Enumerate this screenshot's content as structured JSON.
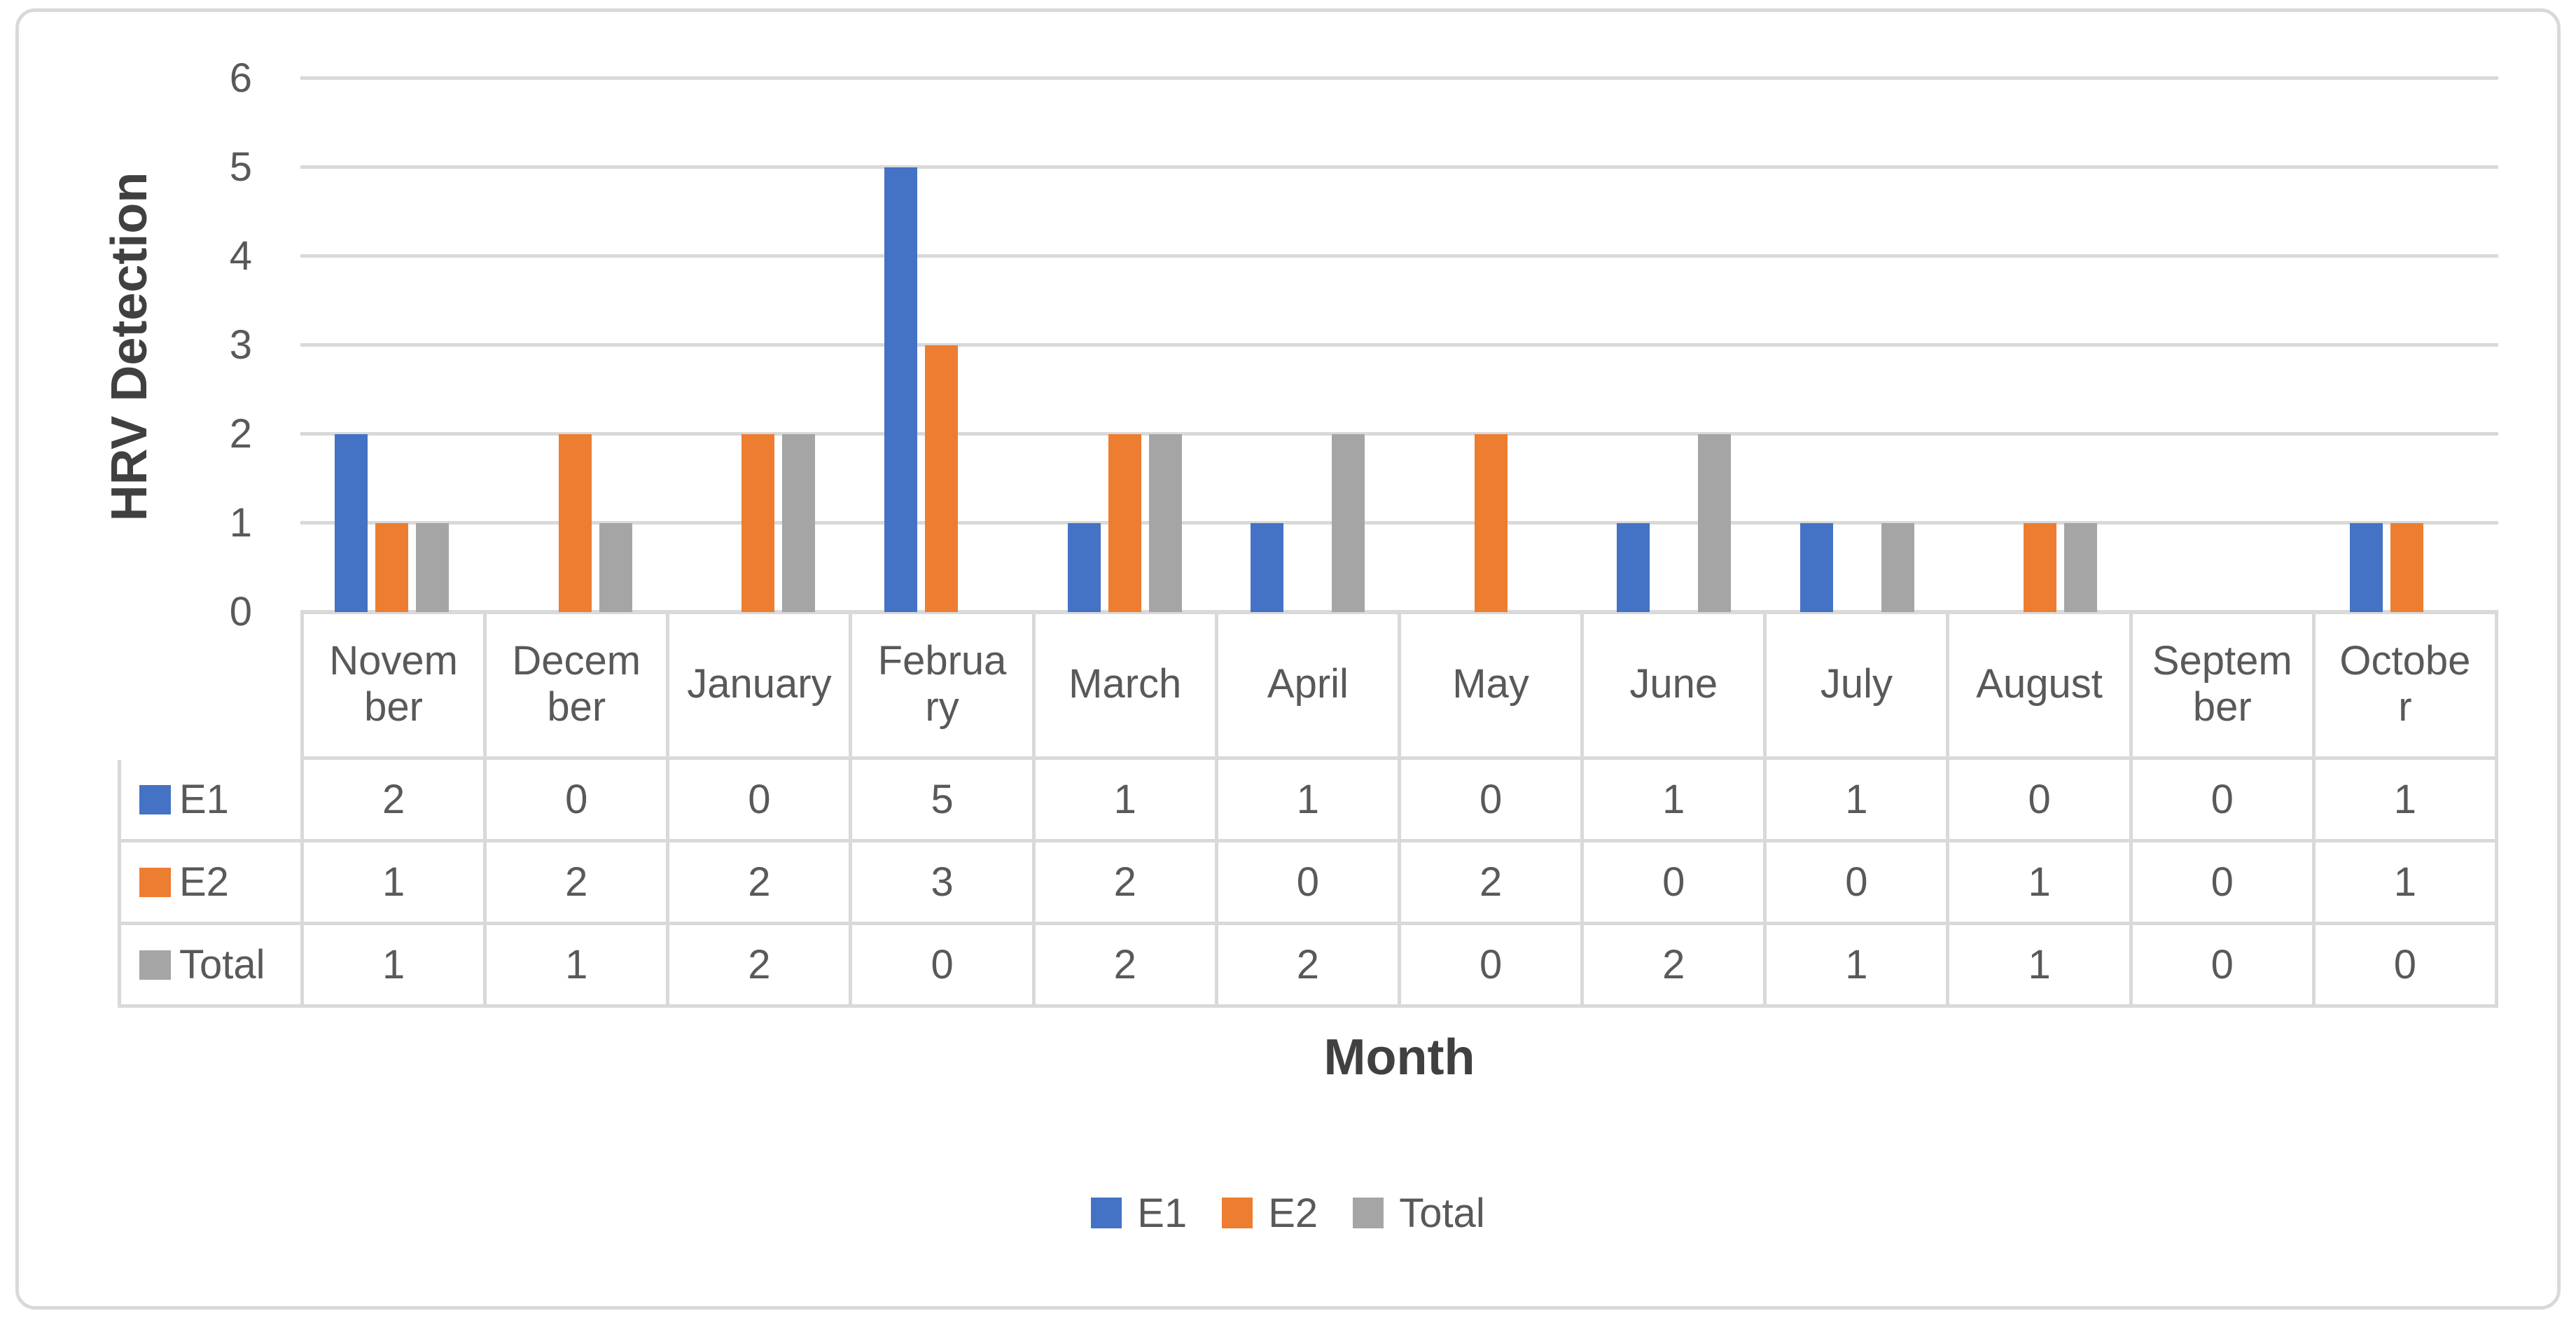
{
  "figure": {
    "background": "#FFFFFF",
    "border_color": "#D9D9D9"
  },
  "chart_data": {
    "type": "bar",
    "title": "",
    "ylabel": "HRV Detection",
    "xlabel": "Month",
    "ylim": [
      0,
      6
    ],
    "y_ticks": [
      0,
      1,
      2,
      3,
      4,
      5,
      6
    ],
    "grid": true,
    "legend_position": "bottom",
    "has_data_table": true,
    "categories": [
      "November",
      "December",
      "January",
      "February",
      "March",
      "April",
      "May",
      "June",
      "July",
      "August",
      "September",
      "October"
    ],
    "category_tick_labels": [
      "Novem\nber",
      "Decem\nber",
      "January",
      "Februa\nry",
      "March",
      "April",
      "May",
      "June",
      "July",
      "August",
      "Septem\nber",
      "Octobe\nr"
    ],
    "series": [
      {
        "name": "E1",
        "color": "#4472C4",
        "values": [
          2,
          0,
          0,
          5,
          1,
          1,
          0,
          1,
          1,
          0,
          0,
          1
        ]
      },
      {
        "name": "E2",
        "color": "#ED7D31",
        "values": [
          1,
          2,
          2,
          3,
          2,
          0,
          2,
          0,
          0,
          1,
          0,
          1
        ]
      },
      {
        "name": "Total",
        "color": "#A5A5A5",
        "values": [
          1,
          1,
          2,
          0,
          2,
          2,
          0,
          2,
          1,
          1,
          0,
          0
        ]
      }
    ],
    "legend": [
      "E1",
      "E2",
      "Total"
    ]
  },
  "style": {
    "gridline_color": "#D9D9D9",
    "table_border_color": "#D9D9D9",
    "text_color": "#595959",
    "title_color": "#404040"
  }
}
